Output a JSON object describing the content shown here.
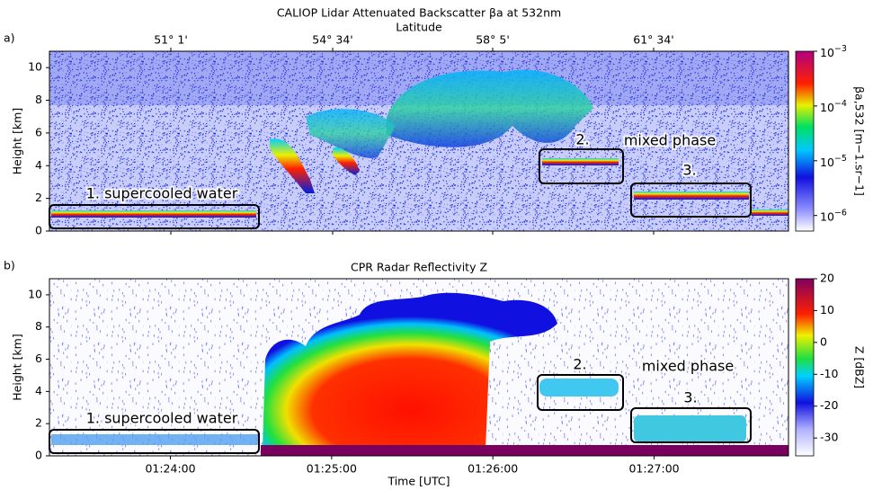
{
  "chart_data": [
    {
      "type": "heatmap",
      "panel_label": "a)",
      "title": "CALIOP Lidar Attenuated Backscatter βa at 532nm",
      "top_axis_label": "Latitude",
      "top_ticks": [
        "51° 1'",
        "54° 34'",
        "58° 5'",
        "61° 34'"
      ],
      "ylabel": "Height [km]",
      "ylim": [
        0,
        11
      ],
      "yticks": [
        0,
        2,
        4,
        6,
        8,
        10
      ],
      "xlim": [
        "01:23:15",
        "01:27:50"
      ],
      "colorbar": {
        "label": "βa,532 [m−1.sr−1]",
        "log": true,
        "lim": [
          5.2e-07,
          0.001
        ],
        "ticks": [
          {
            "value": 0.001,
            "label": "10−3"
          },
          {
            "value": 0.0001,
            "label": "10−4"
          },
          {
            "value": 1e-05,
            "label": "10−5"
          },
          {
            "value": 1e-06,
            "label": "10−6"
          }
        ]
      },
      "annotations": [
        "1. supercooled water",
        "2.",
        "mixed phase",
        "3."
      ]
    },
    {
      "type": "heatmap",
      "panel_label": "b)",
      "title": "CPR Radar Reflectivity Z",
      "ylabel": "Height [km]",
      "ylim": [
        0,
        11
      ],
      "yticks": [
        0,
        2,
        4,
        6,
        8,
        10
      ],
      "xlabel": "Time [UTC]",
      "xlim": [
        "01:23:15",
        "01:27:50"
      ],
      "xticks": [
        "01:24:00",
        "01:25:00",
        "01:26:00",
        "01:27:00"
      ],
      "colorbar": {
        "label": "Z [dBZ]",
        "log": false,
        "lim": [
          -35.6,
          20
        ],
        "ticks": [
          20,
          10,
          0,
          -10,
          -20,
          -30
        ]
      },
      "annotations": [
        "1. supercooled water",
        "2.",
        "mixed phase",
        "3."
      ]
    }
  ]
}
